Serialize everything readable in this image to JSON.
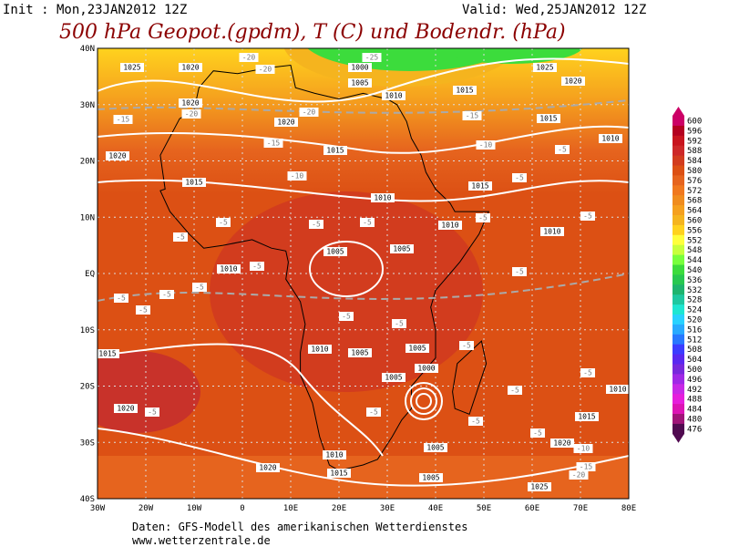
{
  "header": {
    "init": "Init : Mon,23JAN2012 12Z",
    "valid": "Valid: Wed,25JAN2012 12Z",
    "title": "500 hPa Geopot.(gpdm), T (C) und Bodendr. (hPa)"
  },
  "map": {
    "lon_ticks": [
      {
        "value": -30,
        "label": "30W"
      },
      {
        "value": -20,
        "label": "20W"
      },
      {
        "value": -10,
        "label": "10W"
      },
      0,
      {
        "value": 10,
        "label": "10E"
      },
      {
        "value": 20,
        "label": "20E"
      },
      {
        "value": 30,
        "label": "30E"
      },
      {
        "value": 40,
        "label": "40E"
      },
      {
        "value": 50,
        "label": "50E"
      },
      {
        "value": 60,
        "label": "60E"
      },
      {
        "value": 70,
        "label": "70E"
      },
      {
        "value": 80,
        "label": "80E"
      }
    ],
    "lat_ticks": [
      {
        "value": 40,
        "label": "40N"
      },
      {
        "value": 30,
        "label": "30N"
      },
      {
        "value": 20,
        "label": "20N"
      },
      {
        "value": 10,
        "label": "10N"
      },
      {
        "value": 0,
        "label": "EQ"
      },
      {
        "value": -10,
        "label": "10S"
      },
      {
        "value": -20,
        "label": "20S"
      },
      {
        "value": -30,
        "label": "30S"
      },
      {
        "value": -40,
        "label": "40S"
      }
    ],
    "pressure_labels": [
      "1025",
      "1020",
      "1000",
      "1005",
      "1010",
      "1025",
      "1020",
      "1015",
      "1020",
      "1020",
      "1015",
      "1015",
      "1020",
      "1010",
      "1015",
      "1010",
      "1015",
      "1010",
      "1010",
      "1005",
      "1005",
      "1010",
      "1010",
      "1005",
      "1005",
      "1005",
      "1000",
      "1020",
      "1010",
      "1015",
      "1020",
      "1005",
      "1010",
      "1015",
      "1020",
      "1025",
      "1005",
      "1015"
    ],
    "temperature_labels": [
      "-20",
      "-20",
      "-25",
      "-20",
      "-15",
      "-20",
      "-15",
      "-15",
      "-10",
      "-10",
      "-5",
      "-5",
      "-5",
      "-5",
      "-5",
      "-5",
      "-5",
      "-5",
      "-5",
      "-5",
      "-5",
      "-5",
      "-5",
      "-5",
      "-5",
      "-5",
      "-5",
      "-5",
      "-5",
      "-5",
      "-5",
      "-10",
      "-15",
      "-20",
      "-5",
      "-5"
    ]
  },
  "colorbar": {
    "values": [
      600,
      596,
      592,
      588,
      584,
      580,
      576,
      572,
      568,
      564,
      560,
      556,
      552,
      548,
      544,
      540,
      536,
      532,
      528,
      524,
      520,
      516,
      512,
      508,
      504,
      500,
      496,
      492,
      488,
      484,
      480,
      476
    ],
    "colors": [
      "#cc0066",
      "#b40020",
      "#c8141e",
      "#cd2828",
      "#d23c1e",
      "#dc5014",
      "#e6641e",
      "#f0781e",
      "#f08c1e",
      "#f5a01e",
      "#f5b41e",
      "#ffd21e",
      "#ffff3c",
      "#c8ff3c",
      "#78ff3c",
      "#3cdc3c",
      "#28c850",
      "#1eb46e",
      "#1ec8a0",
      "#1ee6d2",
      "#28d2ff",
      "#28aaff",
      "#2878ff",
      "#3c3cff",
      "#5a28f0",
      "#7828dc",
      "#a028e6",
      "#c828e6",
      "#e61edc",
      "#dc14b4",
      "#a01478",
      "#500a50"
    ]
  },
  "footer": {
    "line1": "Daten: GFS-Modell des amerikanischen Wetterdienstes",
    "line2": "www.wetterzentrale.de"
  }
}
